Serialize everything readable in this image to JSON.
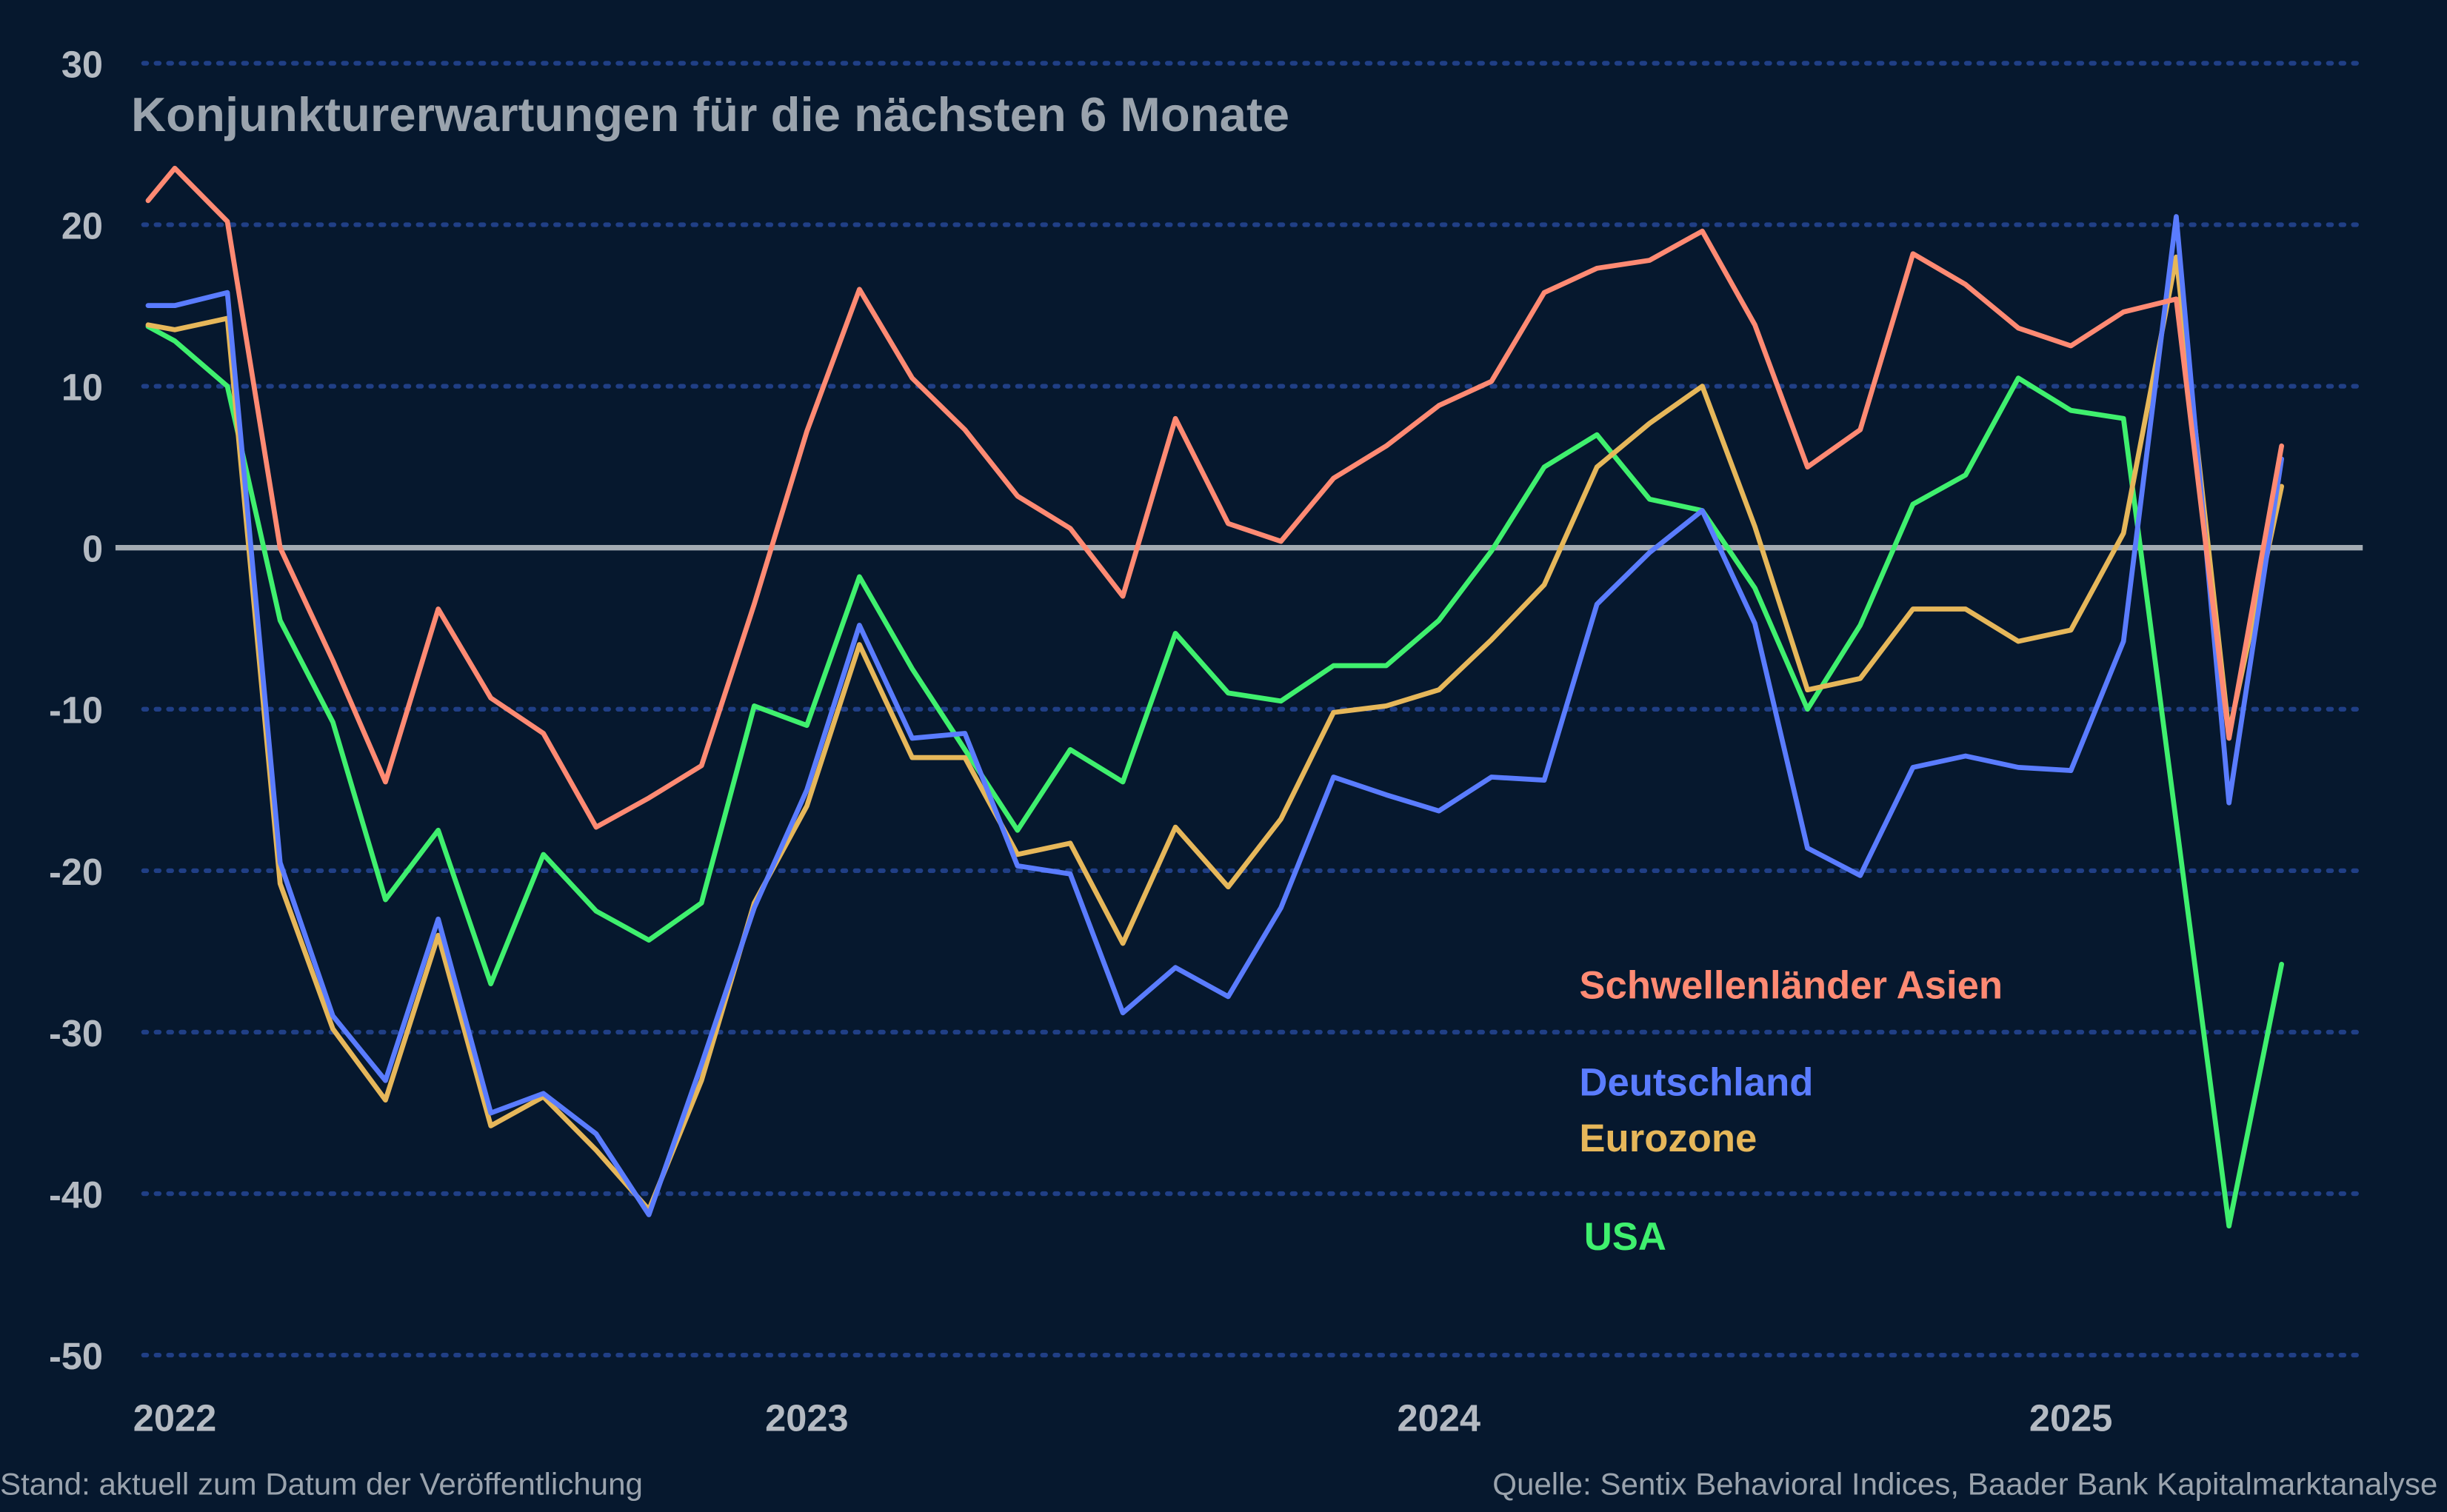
{
  "chart_data": {
    "type": "line",
    "title": "Konjunkturerwartungen für die nächsten 6 Monate",
    "xlabel": "",
    "ylabel": "",
    "ylim": [
      -50,
      30
    ],
    "yticks": [
      30,
      20,
      10,
      0,
      -10,
      -20,
      -30,
      -40,
      -50
    ],
    "ytick_labels": [
      "30",
      "20",
      "10",
      "0",
      "-10",
      "-20",
      "-30",
      "-40",
      "-50"
    ],
    "xticks": [
      "2022",
      "2023",
      "2024",
      "2025"
    ],
    "grid": true,
    "zero_line": true,
    "legend_placement": "bottom-right (inline labels)",
    "background_color": "#06182e",
    "x": [
      "2021-12-16",
      "2022-01",
      "2022-02",
      "2022-03",
      "2022-04",
      "2022-05",
      "2022-06",
      "2022-07",
      "2022-08",
      "2022-09",
      "2022-10",
      "2022-11",
      "2022-12",
      "2023-01",
      "2023-02",
      "2023-03",
      "2023-04",
      "2023-05",
      "2023-06",
      "2023-07",
      "2023-08",
      "2023-09",
      "2023-10",
      "2023-11",
      "2023-12",
      "2024-01",
      "2024-02",
      "2024-03",
      "2024-04",
      "2024-05",
      "2024-06",
      "2024-07",
      "2024-08",
      "2024-09",
      "2024-10",
      "2024-11",
      "2024-12",
      "2025-01",
      "2025-02",
      "2025-03",
      "2025-04",
      "2025-05"
    ],
    "series": [
      {
        "name": "Schwellenländer Asien",
        "color": "#ff8a73",
        "values": [
          21.5,
          23.5,
          20.2,
          0,
          -7,
          -14.5,
          -3.8,
          -9.3,
          -11.5,
          -17.3,
          -15.5,
          -13.5,
          -3.5,
          7.2,
          16,
          10.5,
          7.3,
          3.2,
          1.2,
          -3,
          8,
          1.5,
          0.4,
          4.3,
          6.3,
          8.8,
          10.3,
          15.8,
          17.3,
          17.8,
          19.6,
          13.8,
          5,
          7.3,
          18.2,
          16.3,
          13.6,
          12.5,
          14.6,
          15.4,
          -11.8,
          6.3
        ]
      },
      {
        "name": "Deutschland",
        "color": "#5a7cff",
        "values": [
          15,
          15,
          15.8,
          -19.5,
          -29,
          -33,
          -23,
          -35,
          -33.8,
          -36.3,
          -41.3,
          -32,
          -22.3,
          -15,
          -4.8,
          -11.8,
          -11.5,
          -19.7,
          -20.2,
          -28.8,
          -26,
          -27.8,
          -22.3,
          -14.2,
          -15.3,
          -16.3,
          -14.2,
          -14.4,
          -3.5,
          -0.3,
          2.3,
          -4.7,
          -18.6,
          -20.3,
          -13.6,
          -12.9,
          -13.6,
          -13.8,
          -5.8,
          20.5,
          -15.8,
          5.5
        ]
      },
      {
        "name": "Eurozone",
        "color": "#e6b75a",
        "values": [
          13.8,
          13.5,
          14.2,
          -20.8,
          -29.8,
          -34.2,
          -24,
          -35.8,
          -34,
          -37.3,
          -41,
          -33,
          -22,
          -16,
          -6,
          -13,
          -13,
          -19,
          -18.3,
          -24.5,
          -17.3,
          -21,
          -16.8,
          -10.2,
          -9.8,
          -8.8,
          -5.7,
          -2.3,
          5,
          7.7,
          10,
          1.3,
          -8.8,
          -8.1,
          -3.8,
          -3.8,
          -5.8,
          -5.1,
          0.9,
          18,
          -11.5,
          3.8
        ]
      },
      {
        "name": "USA",
        "color": "#3ff06e",
        "values": [
          13.7,
          12.8,
          10,
          -4.5,
          -10.8,
          -21.8,
          -17.5,
          -27,
          -19,
          -22.5,
          -24.3,
          -22,
          -9.8,
          -11,
          -1.8,
          -7.5,
          -12.5,
          -17.5,
          -12.5,
          -14.5,
          -5.3,
          -9,
          -9.5,
          -7.3,
          -7.3,
          -4.5,
          -0.2,
          5,
          7,
          3,
          2.3,
          -2.5,
          -10,
          -4.8,
          2.7,
          4.5,
          10.5,
          8.5,
          8,
          -17,
          -42,
          -25.8
        ]
      }
    ]
  },
  "footer": {
    "left": "Stand: aktuell zum Datum der Veröffentlichung",
    "right": "Quelle: Sentix Behavioral Indices, Baader Bank Kapitalmarktanalyse"
  }
}
